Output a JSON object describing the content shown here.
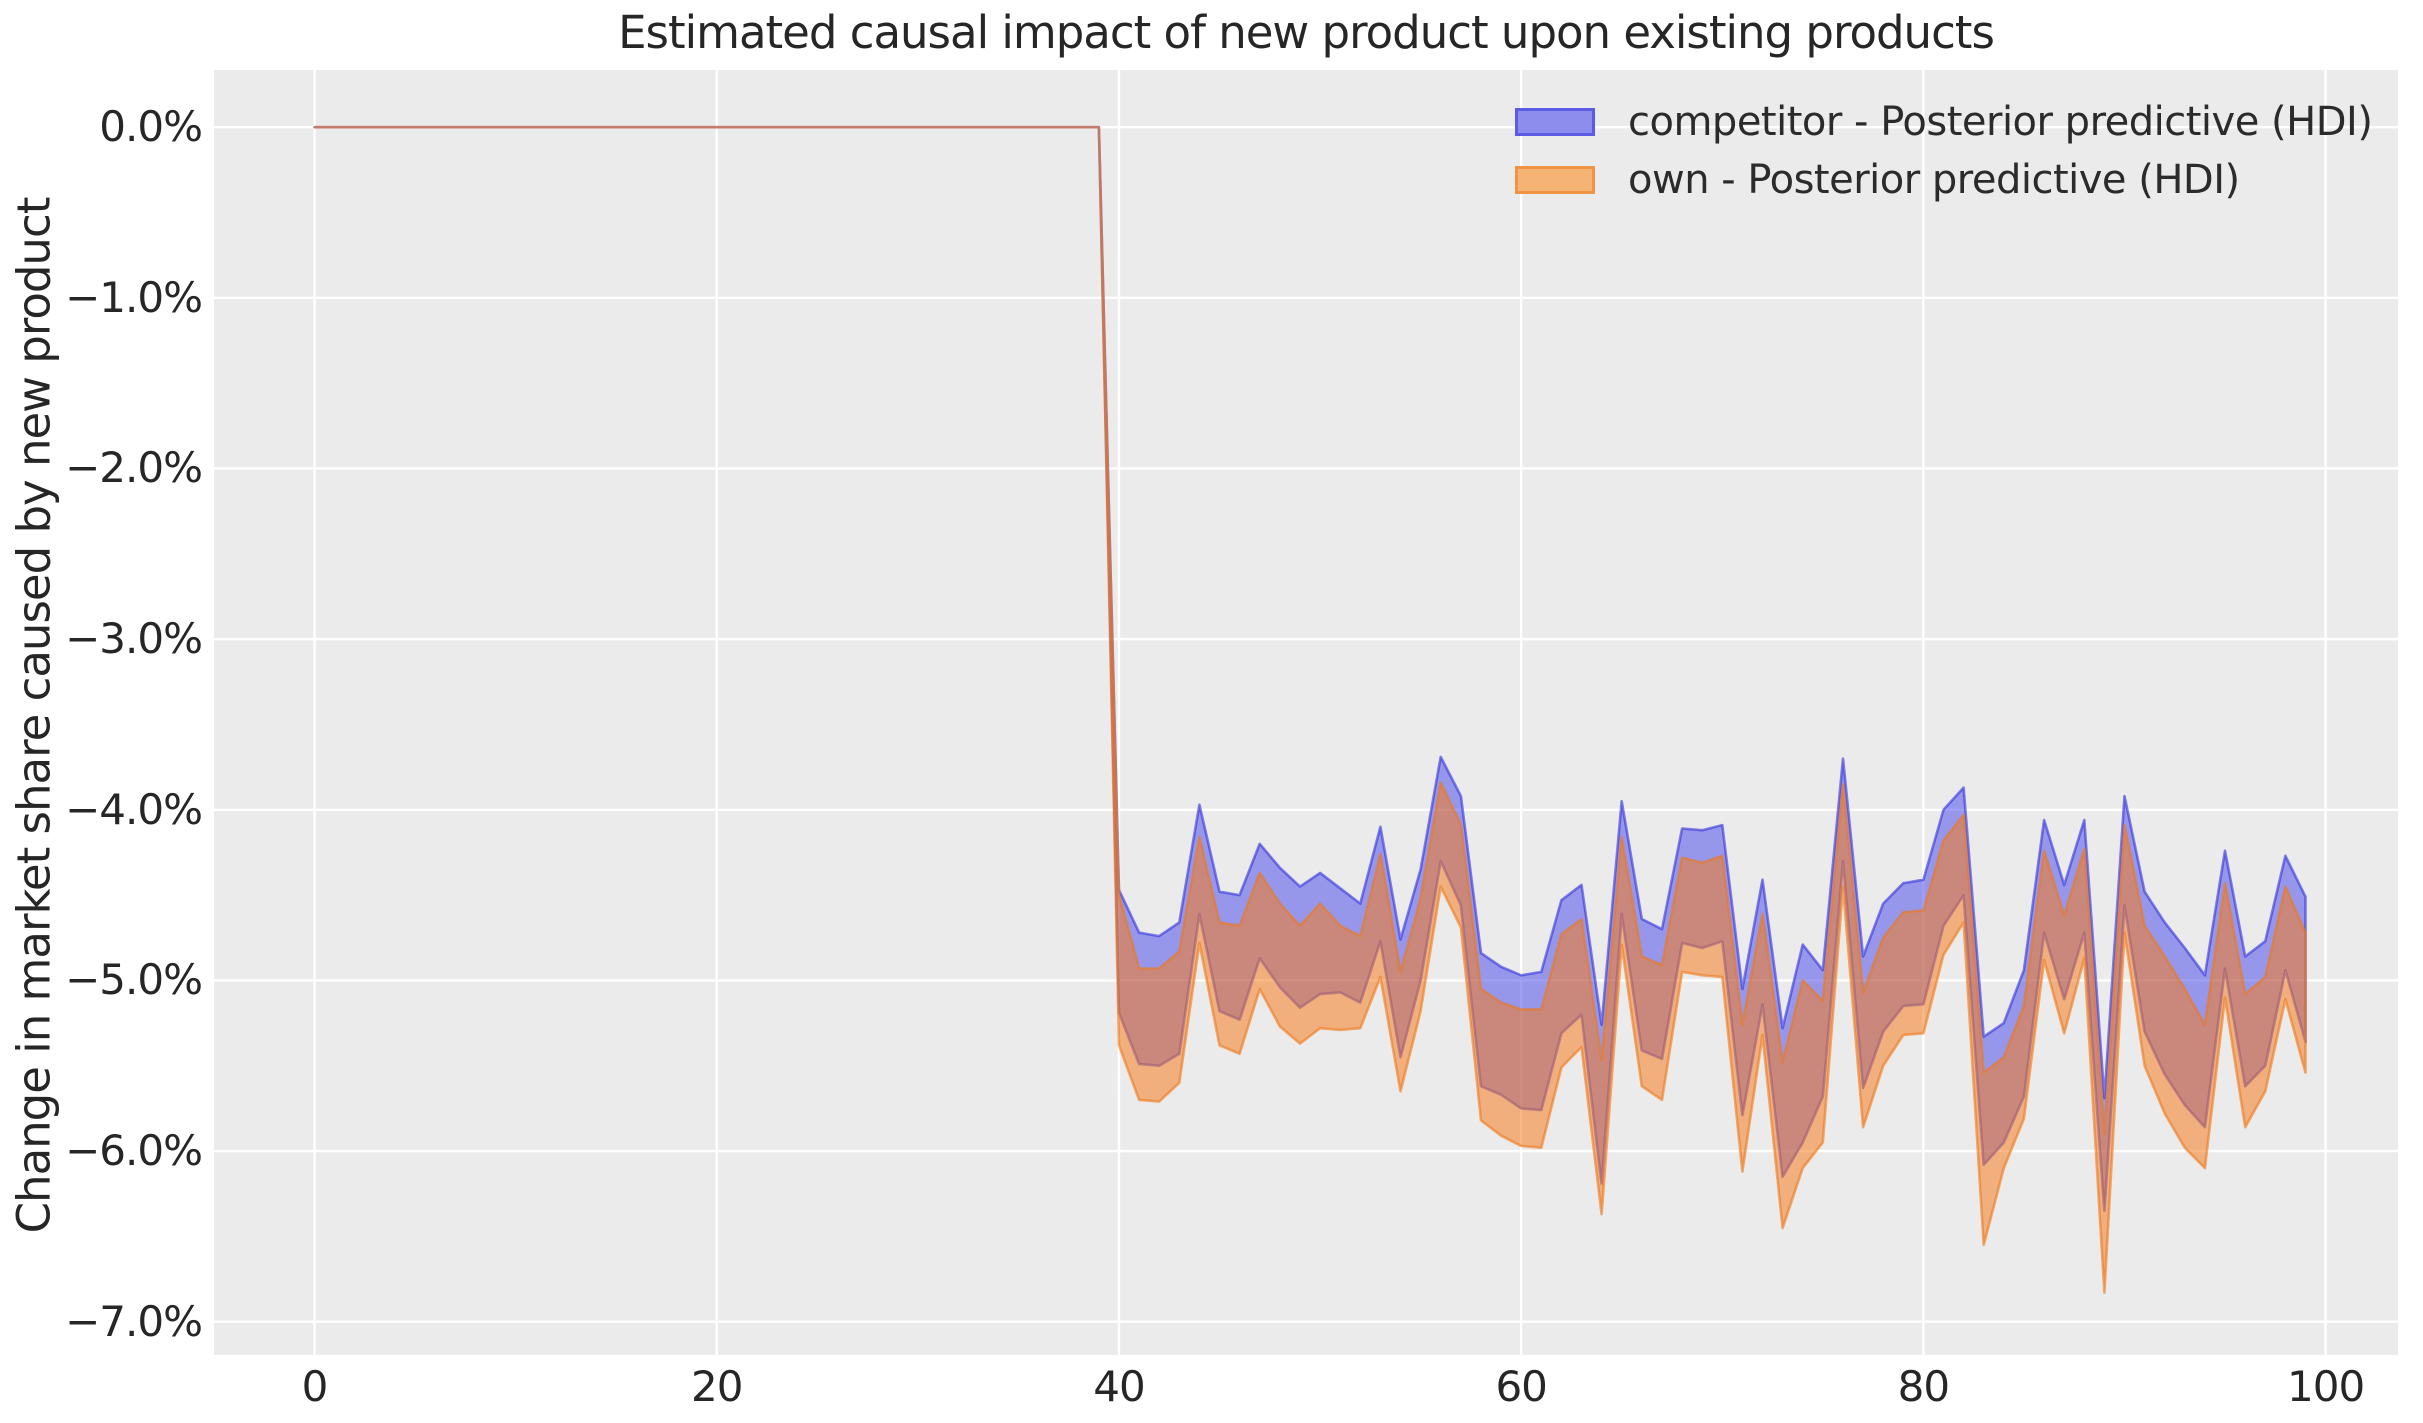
{
  "title": "Estimated causal impact of new product upon existing products",
  "y_axis": {
    "label": "Change in market share caused by new product",
    "ticks": [
      {
        "label": "0.0%",
        "value": 0
      },
      {
        "label": "−1.0%",
        "value": -1
      },
      {
        "label": "−2.0%",
        "value": -2
      },
      {
        "label": "−3.0%",
        "value": -3
      },
      {
        "label": "−4.0%",
        "value": -4
      },
      {
        "label": "−5.0%",
        "value": -5
      },
      {
        "label": "−6.0%",
        "value": -6
      },
      {
        "label": "−7.0%",
        "value": -7
      }
    ]
  },
  "x_axis": {
    "ticks": [
      {
        "label": "0",
        "value": 0
      },
      {
        "label": "20",
        "value": 20
      },
      {
        "label": "40",
        "value": 40
      },
      {
        "label": "60",
        "value": 60
      },
      {
        "label": "80",
        "value": 80
      },
      {
        "label": "100",
        "value": 100
      }
    ]
  },
  "legend": {
    "items": [
      {
        "label": "competitor - Posterior predictive (HDI)",
        "swatch_fill": "#8d8dee",
        "swatch_border": "#5b5be4"
      },
      {
        "label": "own - Posterior predictive (HDI)",
        "swatch_fill": "#f5b476",
        "swatch_border": "#ef9344"
      }
    ]
  },
  "colors": {
    "plot_bg": "#ebebeb",
    "grid": "#ffffff",
    "text": "#262626",
    "competitor_fill": "rgba(80,80,235,0.55)",
    "competitor_stroke": "rgba(50,50,220,0.6)",
    "own_fill": "rgba(245,125,35,0.55)",
    "own_stroke": "rgba(238,120,25,0.6)"
  },
  "chart_data": {
    "type": "area",
    "title": "Estimated causal impact of new product upon existing products",
    "xlabel": "",
    "ylabel": "Change in market share caused by new product (%)",
    "grid": true,
    "legend_position": "upper right",
    "xlim": [
      -5,
      103.6
    ],
    "ylim": [
      0.335,
      -7.195
    ],
    "x_tick_values": [
      0,
      20,
      40,
      60,
      80,
      100
    ],
    "y_tick_values": [
      0,
      -1,
      -2,
      -3,
      -4,
      -5,
      -6,
      -7
    ],
    "x_range": [
      0,
      99
    ],
    "pre_period": {
      "x_start": 0,
      "x_end": 39,
      "value_percent": 0
    },
    "post_period_x_start": 40,
    "series": [
      {
        "name": "competitor - Posterior predictive (HDI)",
        "band": "hdi",
        "post_x": [
          40,
          41,
          42,
          43,
          44,
          45,
          46,
          47,
          48,
          49,
          50,
          51,
          52,
          53,
          54,
          55,
          56,
          57,
          58,
          59,
          60,
          61,
          62,
          63,
          64,
          65,
          66,
          67,
          68,
          69,
          70,
          71,
          72,
          73,
          74,
          75,
          76,
          77,
          78,
          79,
          80,
          81,
          82,
          83,
          84,
          85,
          86,
          87,
          88,
          89,
          90,
          91,
          92,
          93,
          94,
          95,
          96,
          97,
          98,
          99
        ],
        "hdi_upper_percent": [
          -4.47,
          -4.72,
          -4.74,
          -4.66,
          -3.97,
          -4.48,
          -4.5,
          -4.2,
          -4.34,
          -4.45,
          -4.37,
          -4.46,
          -4.55,
          -4.1,
          -4.76,
          -4.35,
          -3.69,
          -3.92,
          -4.84,
          -4.92,
          -4.97,
          -4.95,
          -4.53,
          -4.44,
          -5.26,
          -3.95,
          -4.64,
          -4.7,
          -4.11,
          -4.12,
          -4.09,
          -5.05,
          -4.41,
          -5.28,
          -4.79,
          -4.94,
          -3.7,
          -4.86,
          -4.55,
          -4.43,
          -4.41,
          -4.0,
          -3.87,
          -5.33,
          -5.25,
          -4.94,
          -4.06,
          -4.44,
          -4.06,
          -5.69,
          -3.92,
          -4.48,
          -4.66,
          -4.81,
          -4.97,
          -4.24,
          -4.86,
          -4.77,
          -4.27,
          -4.51
        ],
        "hdi_lower_percent": [
          -5.19,
          -5.49,
          -5.5,
          -5.43,
          -4.61,
          -5.18,
          -5.23,
          -4.87,
          -5.04,
          -5.16,
          -5.08,
          -5.07,
          -5.13,
          -4.77,
          -5.45,
          -5.0,
          -4.3,
          -4.56,
          -5.62,
          -5.67,
          -5.75,
          -5.76,
          -5.31,
          -5.2,
          -6.19,
          -4.61,
          -5.41,
          -5.46,
          -4.78,
          -4.81,
          -4.77,
          -5.79,
          -5.14,
          -6.15,
          -5.95,
          -5.68,
          -4.3,
          -5.63,
          -5.3,
          -5.15,
          -5.14,
          -4.68,
          -4.5,
          -6.08,
          -5.95,
          -5.68,
          -4.72,
          -5.11,
          -4.72,
          -6.35,
          -4.56,
          -5.3,
          -5.55,
          -5.73,
          -5.86,
          -4.93,
          -5.62,
          -5.5,
          -4.94,
          -5.36
        ]
      },
      {
        "name": "own - Posterior predictive (HDI)",
        "band": "hdi",
        "post_x": [
          40,
          41,
          42,
          43,
          44,
          45,
          46,
          47,
          48,
          49,
          50,
          51,
          52,
          53,
          54,
          55,
          56,
          57,
          58,
          59,
          60,
          61,
          62,
          63,
          64,
          65,
          66,
          67,
          68,
          69,
          70,
          71,
          72,
          73,
          74,
          75,
          76,
          77,
          78,
          79,
          80,
          81,
          82,
          83,
          84,
          85,
          86,
          87,
          88,
          89,
          90,
          91,
          92,
          93,
          94,
          95,
          96,
          97,
          98,
          99
        ],
        "hdi_upper_percent": [
          -4.5,
          -4.93,
          -4.93,
          -4.83,
          -4.16,
          -4.66,
          -4.68,
          -4.37,
          -4.55,
          -4.68,
          -4.55,
          -4.68,
          -4.74,
          -4.26,
          -4.95,
          -4.52,
          -3.84,
          -4.09,
          -5.05,
          -5.13,
          -5.17,
          -5.17,
          -4.73,
          -4.64,
          -5.47,
          -4.16,
          -4.86,
          -4.91,
          -4.28,
          -4.31,
          -4.27,
          -5.26,
          -4.61,
          -5.48,
          -5.0,
          -5.12,
          -3.85,
          -5.07,
          -4.75,
          -4.6,
          -4.59,
          -4.18,
          -4.03,
          -5.54,
          -5.45,
          -5.15,
          -4.24,
          -4.62,
          -4.23,
          -5.9,
          -4.09,
          -4.68,
          -4.86,
          -5.05,
          -5.26,
          -4.43,
          -5.08,
          -4.98,
          -4.45,
          -4.72
        ],
        "hdi_lower_percent": [
          -5.38,
          -5.7,
          -5.71,
          -5.6,
          -4.78,
          -5.38,
          -5.43,
          -5.05,
          -5.27,
          -5.37,
          -5.28,
          -5.29,
          -5.28,
          -4.98,
          -5.65,
          -5.18,
          -4.45,
          -4.69,
          -5.82,
          -5.91,
          -5.97,
          -5.98,
          -5.51,
          -5.39,
          -6.37,
          -4.79,
          -5.62,
          -5.7,
          -4.95,
          -4.97,
          -4.98,
          -6.12,
          -5.32,
          -6.45,
          -6.1,
          -5.95,
          -4.45,
          -5.86,
          -5.5,
          -5.32,
          -5.31,
          -4.85,
          -4.66,
          -6.55,
          -6.1,
          -5.81,
          -4.88,
          -5.31,
          -4.87,
          -6.83,
          -4.72,
          -5.5,
          -5.78,
          -5.98,
          -6.1,
          -5.1,
          -5.86,
          -5.65,
          -5.11,
          -5.54
        ]
      }
    ]
  }
}
